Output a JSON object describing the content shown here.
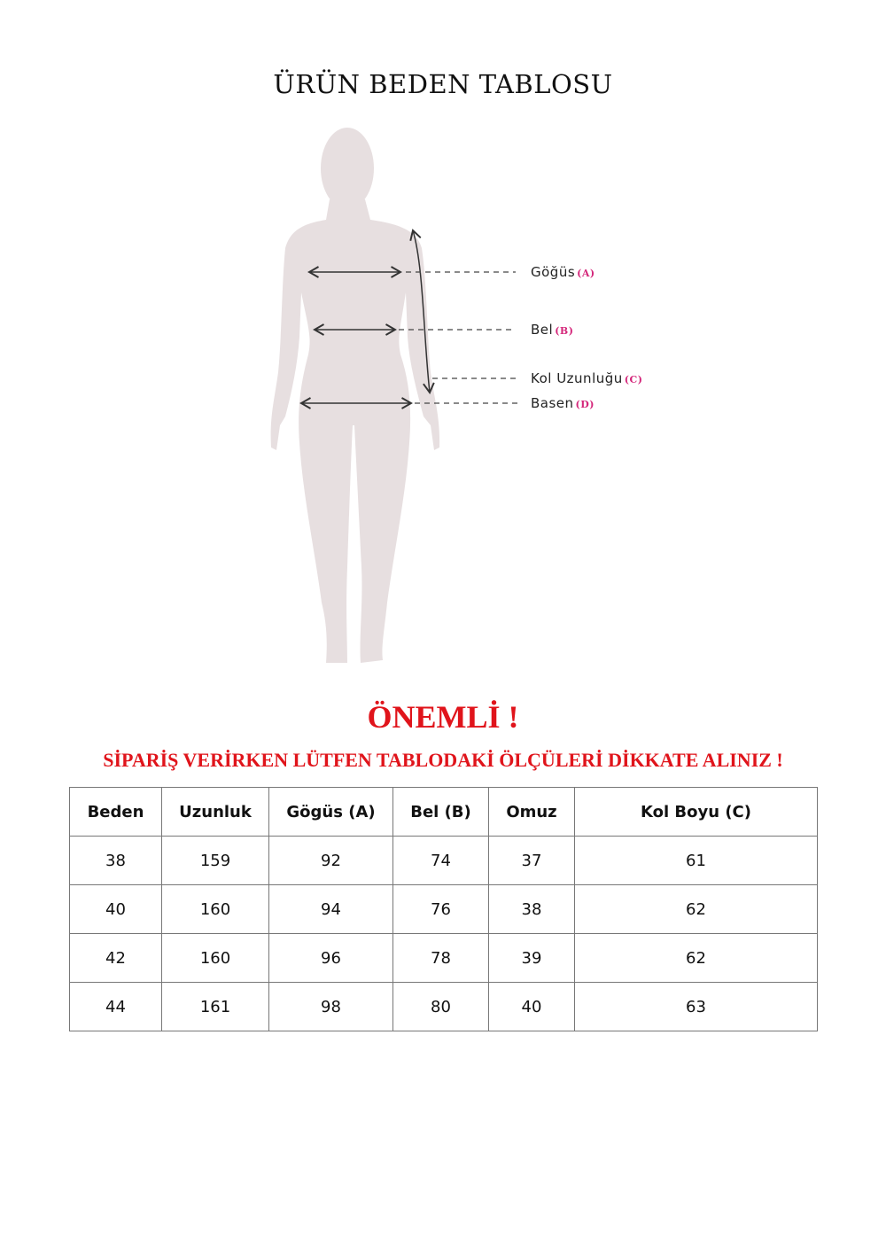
{
  "title": "ÜRÜN BEDEN TABLOSU",
  "figure": {
    "body_color": "#e7dfe0",
    "labels": [
      {
        "text": "Göğüs",
        "tag": "(A)"
      },
      {
        "text": "Bel",
        "tag": "(B)"
      },
      {
        "text": "Kol Uzunluğu",
        "tag": "(C)"
      },
      {
        "text": "Basen",
        "tag": "(D)"
      }
    ]
  },
  "important": "ÖNEMLİ !",
  "warning": "SİPARİŞ VERİRKEN LÜTFEN TABLODAKİ ÖLÇÜLERİ DİKKATE ALINIZ !",
  "accent_color": "#e0141b",
  "table": {
    "headers": [
      "Beden",
      "Uzunluk",
      "Gögüs (A)",
      "Bel (B)",
      "Omuz",
      "Kol Boyu (C)"
    ],
    "rows": [
      [
        "38",
        "159",
        "92",
        "74",
        "37",
        "61"
      ],
      [
        "40",
        "160",
        "94",
        "76",
        "38",
        "62"
      ],
      [
        "42",
        "160",
        "96",
        "78",
        "39",
        "62"
      ],
      [
        "44",
        "161",
        "98",
        "80",
        "40",
        "63"
      ]
    ]
  }
}
